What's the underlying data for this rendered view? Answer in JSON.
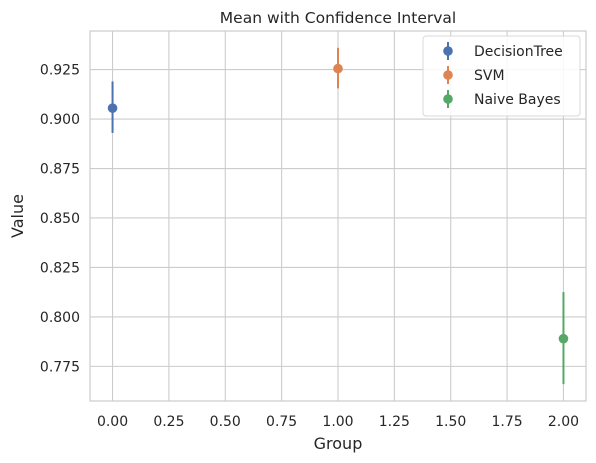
{
  "chart_data": {
    "type": "scatter",
    "title": "Mean with Confidence Interval",
    "xlabel": "Group",
    "ylabel": "Value",
    "xlim": [
      -0.1,
      2.1
    ],
    "ylim": [
      0.7575,
      0.9445
    ],
    "xticks": [
      0.0,
      0.25,
      0.5,
      0.75,
      1.0,
      1.25,
      1.5,
      1.75,
      2.0
    ],
    "xtick_labels": [
      "0.00",
      "0.25",
      "0.50",
      "0.75",
      "1.00",
      "1.25",
      "1.50",
      "1.75",
      "2.00"
    ],
    "yticks": [
      0.775,
      0.8,
      0.825,
      0.85,
      0.875,
      0.9,
      0.925
    ],
    "ytick_labels": [
      "0.775",
      "0.800",
      "0.825",
      "0.850",
      "0.875",
      "0.900",
      "0.925"
    ],
    "grid": true,
    "legend_position": "top-right",
    "series": [
      {
        "name": "DecisionTree",
        "x": 0,
        "y": 0.9055,
        "lower": 0.893,
        "upper": 0.919,
        "color": "#4c72b0"
      },
      {
        "name": "SVM",
        "x": 1,
        "y": 0.9255,
        "lower": 0.9155,
        "upper": 0.936,
        "color": "#dd8452"
      },
      {
        "name": "Naive Bayes",
        "x": 2,
        "y": 0.789,
        "lower": 0.766,
        "upper": 0.8125,
        "color": "#55a868"
      }
    ]
  }
}
